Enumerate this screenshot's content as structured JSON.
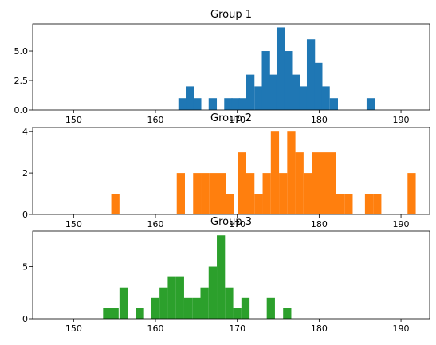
{
  "chart_data": [
    {
      "type": "bar",
      "title": "Group 1",
      "color": "#1f77b4",
      "bin_width": 1.0,
      "xlim": [
        145,
        193.5
      ],
      "ylim": [
        0,
        7.3
      ],
      "xticks": [
        150,
        160,
        170,
        180,
        190
      ],
      "xtick_labels": [
        "150",
        "160",
        "170",
        "180",
        "190"
      ],
      "yticks": [
        0,
        2.5,
        5.0
      ],
      "ytick_labels": [
        "0.0",
        "2.5",
        "5.0"
      ],
      "bins": [
        {
          "x": 162.8,
          "value": 1
        },
        {
          "x": 163.7,
          "value": 2
        },
        {
          "x": 164.6,
          "value": 1
        },
        {
          "x": 166.5,
          "value": 1
        },
        {
          "x": 168.4,
          "value": 1
        },
        {
          "x": 169.3,
          "value": 1
        },
        {
          "x": 170.2,
          "value": 1
        },
        {
          "x": 171.1,
          "value": 3
        },
        {
          "x": 172.1,
          "value": 2
        },
        {
          "x": 173.0,
          "value": 5
        },
        {
          "x": 173.9,
          "value": 3
        },
        {
          "x": 174.8,
          "value": 7
        },
        {
          "x": 175.7,
          "value": 5
        },
        {
          "x": 176.7,
          "value": 3
        },
        {
          "x": 177.6,
          "value": 2
        },
        {
          "x": 178.5,
          "value": 6
        },
        {
          "x": 179.4,
          "value": 4
        },
        {
          "x": 180.3,
          "value": 2
        },
        {
          "x": 181.3,
          "value": 1
        },
        {
          "x": 185.8,
          "value": 1
        }
      ]
    },
    {
      "type": "bar",
      "title": "Group 2",
      "color": "#ff7f0e",
      "bin_width": 1.0,
      "xlim": [
        145,
        193.5
      ],
      "ylim": [
        0,
        4.2
      ],
      "xticks": [
        150,
        160,
        170,
        180,
        190
      ],
      "xtick_labels": [
        "150",
        "160",
        "170",
        "180",
        "190"
      ],
      "yticks": [
        0,
        2,
        4
      ],
      "ytick_labels": [
        "0",
        "2",
        "4"
      ],
      "bins": [
        {
          "x": 154.6,
          "value": 1
        },
        {
          "x": 162.6,
          "value": 2
        },
        {
          "x": 164.6,
          "value": 2
        },
        {
          "x": 165.6,
          "value": 2
        },
        {
          "x": 166.6,
          "value": 2
        },
        {
          "x": 167.6,
          "value": 2
        },
        {
          "x": 168.6,
          "value": 1
        },
        {
          "x": 170.1,
          "value": 3
        },
        {
          "x": 171.1,
          "value": 2
        },
        {
          "x": 172.1,
          "value": 1
        },
        {
          "x": 173.1,
          "value": 2
        },
        {
          "x": 174.1,
          "value": 4
        },
        {
          "x": 175.1,
          "value": 2
        },
        {
          "x": 176.1,
          "value": 4
        },
        {
          "x": 177.1,
          "value": 3
        },
        {
          "x": 178.1,
          "value": 2
        },
        {
          "x": 179.1,
          "value": 3
        },
        {
          "x": 180.1,
          "value": 3
        },
        {
          "x": 181.1,
          "value": 3
        },
        {
          "x": 182.1,
          "value": 1
        },
        {
          "x": 183.1,
          "value": 1
        },
        {
          "x": 185.6,
          "value": 1
        },
        {
          "x": 186.6,
          "value": 1
        },
        {
          "x": 190.8,
          "value": 2
        }
      ]
    },
    {
      "type": "bar",
      "title": "Group 3",
      "color": "#2ca02c",
      "bin_width": 1.0,
      "xlim": [
        145,
        193.5
      ],
      "ylim": [
        0,
        8.4
      ],
      "xticks": [
        150,
        160,
        170,
        180,
        190
      ],
      "xtick_labels": [
        "150",
        "160",
        "170",
        "180",
        "190"
      ],
      "yticks": [
        0,
        5
      ],
      "ytick_labels": [
        "0",
        "5"
      ],
      "bins": [
        {
          "x": 153.6,
          "value": 1
        },
        {
          "x": 154.5,
          "value": 1
        },
        {
          "x": 155.6,
          "value": 3
        },
        {
          "x": 157.6,
          "value": 1
        },
        {
          "x": 159.5,
          "value": 2
        },
        {
          "x": 160.5,
          "value": 3
        },
        {
          "x": 161.5,
          "value": 4
        },
        {
          "x": 162.5,
          "value": 4
        },
        {
          "x": 163.5,
          "value": 2
        },
        {
          "x": 164.5,
          "value": 2
        },
        {
          "x": 165.5,
          "value": 3
        },
        {
          "x": 166.5,
          "value": 5
        },
        {
          "x": 167.5,
          "value": 8
        },
        {
          "x": 168.5,
          "value": 3
        },
        {
          "x": 169.5,
          "value": 1
        },
        {
          "x": 170.5,
          "value": 2
        },
        {
          "x": 173.6,
          "value": 2
        },
        {
          "x": 175.6,
          "value": 1
        }
      ]
    }
  ]
}
